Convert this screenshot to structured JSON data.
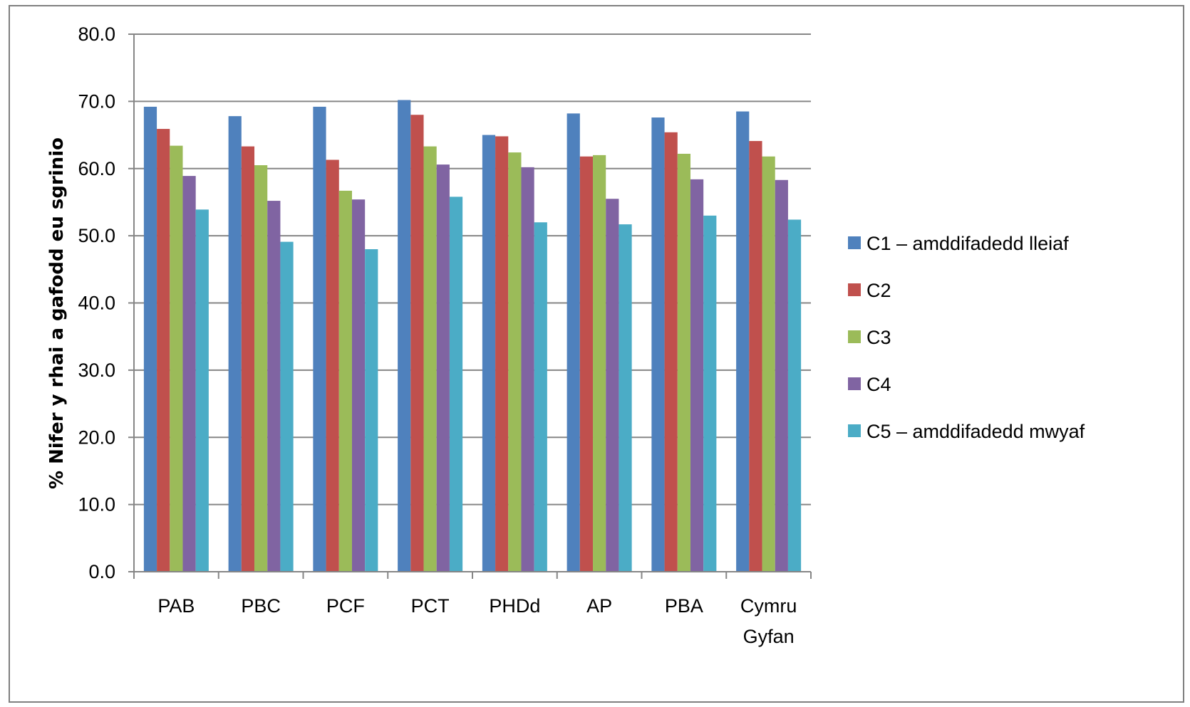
{
  "chart_data": {
    "type": "bar",
    "title": "",
    "xlabel": "",
    "ylabel": "% Nifer y rhai a gafodd eu sgrinio",
    "ylim": [
      0,
      80
    ],
    "yticks": [
      "0.0",
      "10.0",
      "20.0",
      "30.0",
      "40.0",
      "50.0",
      "60.0",
      "70.0",
      "80.0"
    ],
    "grid": true,
    "legend_position": "right",
    "categories": [
      "PAB",
      "PBC",
      "PCF",
      "PCT",
      "PHDd",
      "AP",
      "PBA",
      "Cymru Gyfan"
    ],
    "series": [
      {
        "name": "C1 – amddifadedd lleiaf",
        "color": "#4f81bd",
        "values": [
          69.2,
          67.8,
          69.2,
          70.2,
          65.0,
          68.2,
          67.6,
          68.5
        ]
      },
      {
        "name": "C2",
        "color": "#c0504d",
        "values": [
          65.9,
          63.3,
          61.3,
          68.0,
          64.8,
          61.8,
          65.4,
          64.1
        ]
      },
      {
        "name": "C3",
        "color": "#9bbb59",
        "values": [
          63.4,
          60.5,
          56.7,
          63.3,
          62.4,
          62.0,
          62.2,
          61.8
        ]
      },
      {
        "name": "C4",
        "color": "#8064a2",
        "values": [
          58.9,
          55.2,
          55.4,
          60.6,
          60.2,
          55.5,
          58.4,
          58.3
        ]
      },
      {
        "name": "C5 – amddifadedd mwyaf",
        "color": "#4bacc6",
        "values": [
          53.9,
          49.1,
          48.0,
          55.8,
          52.0,
          51.7,
          53.0,
          52.4
        ]
      }
    ]
  }
}
